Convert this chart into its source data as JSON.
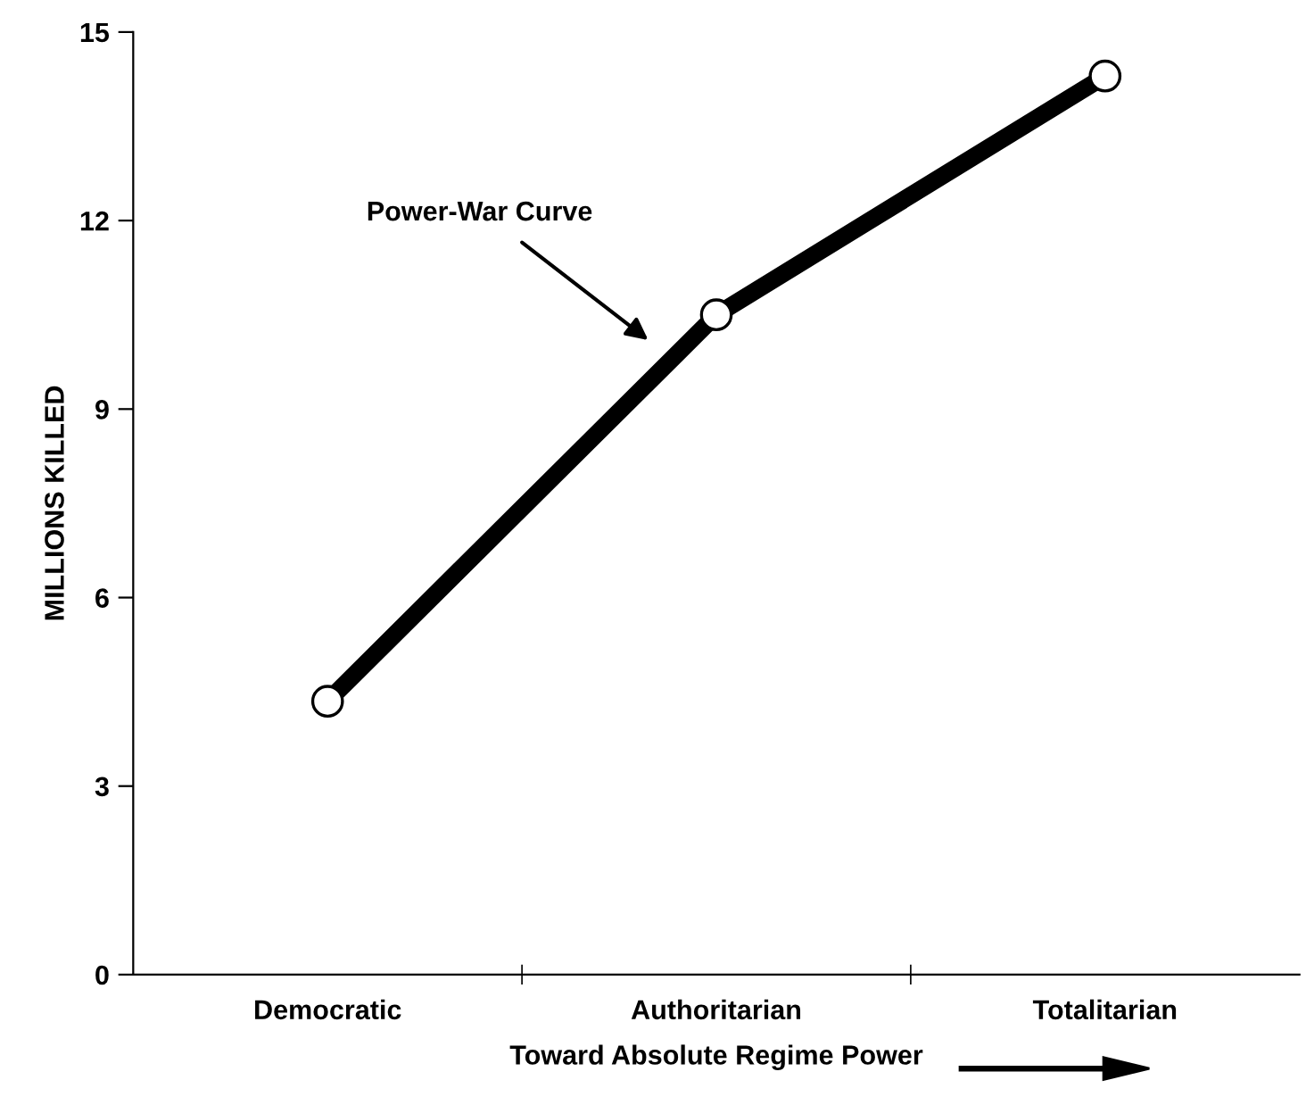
{
  "chart_data": {
    "type": "line",
    "categories": [
      "Democratic",
      "Authoritarian",
      "Totalitarian"
    ],
    "series": [
      {
        "color": "#000000",
        "values": [
          4.35,
          10.5,
          14.3
        ]
      }
    ],
    "ylabel": "MILLIONS KILLED",
    "xlabel": "Toward Absolute Regime Power",
    "annotations": [
      "Power-War Curve"
    ],
    "ylim": [
      0,
      15
    ],
    "yticks": [
      0,
      3,
      6,
      9,
      12,
      15
    ],
    "grid": false,
    "legend": false,
    "marker": "circle",
    "line_style": "solid"
  }
}
